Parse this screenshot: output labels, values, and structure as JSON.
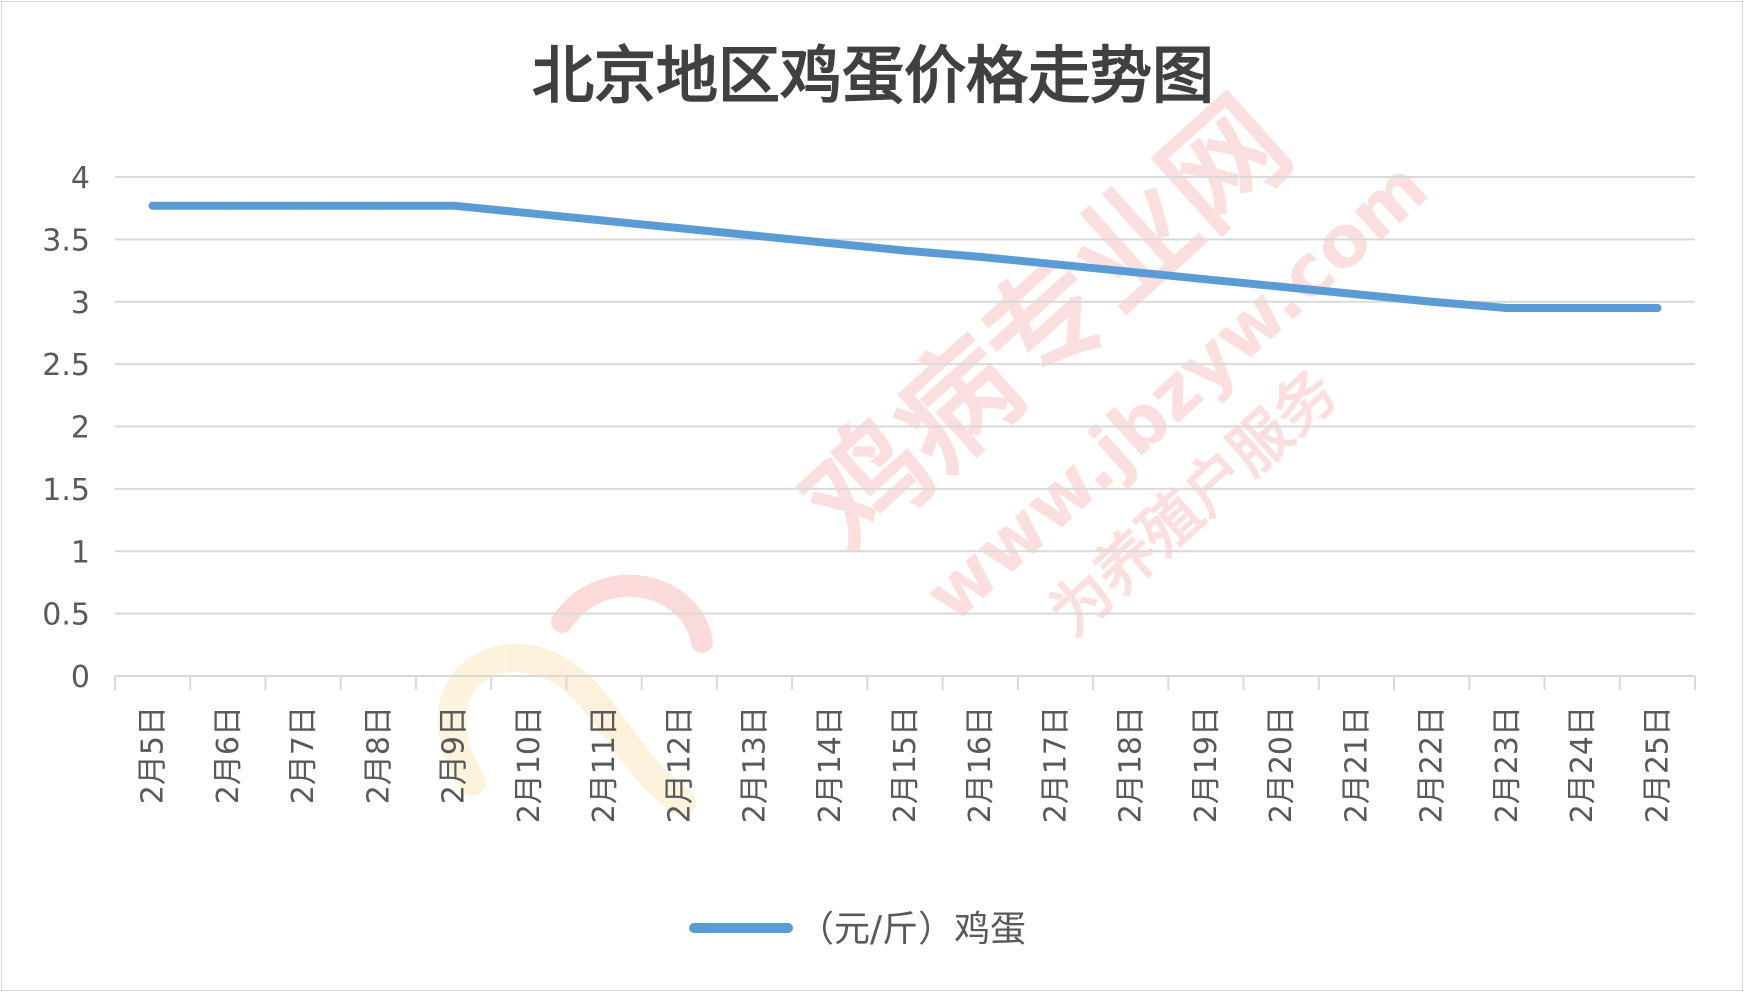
{
  "colors": {
    "series": "#5b9bd5",
    "grid": "#d9d9d9",
    "axis": "#d9d9d9",
    "text": "#595959",
    "title": "#404040",
    "watermark": "#e8403a"
  },
  "watermark": {
    "name": "鸡病专业网",
    "url": "www.jbzyw.com",
    "slogan": "为养殖户服务"
  },
  "chart_data": {
    "type": "line",
    "title": "北京地区鸡蛋价格走势图",
    "xlabel": "",
    "ylabel": "",
    "ylim": [
      0,
      4
    ],
    "yticks": [
      "0",
      "0.5",
      "1",
      "1.5",
      "2",
      "2.5",
      "3",
      "3.5",
      "4"
    ],
    "grid": true,
    "legend_position": "bottom",
    "categories": [
      "2月5日",
      "2月6日",
      "2月7日",
      "2月8日",
      "2月9日",
      "2月10日",
      "2月11日",
      "2月12日",
      "2月13日",
      "2月14日",
      "2月15日",
      "2月16日",
      "2月17日",
      "2月18日",
      "2月19日",
      "2月20日",
      "2月21日",
      "2月22日",
      "2月23日",
      "2月24日",
      "2月25日"
    ],
    "series": [
      {
        "name": "（元/斤）鸡蛋",
        "values": [
          3.77,
          3.77,
          3.77,
          3.77,
          3.77,
          3.71,
          3.65,
          3.59,
          3.53,
          3.47,
          3.41,
          3.36,
          3.3,
          3.24,
          3.18,
          3.12,
          3.06,
          3.0,
          2.95,
          2.95,
          2.95
        ]
      }
    ]
  }
}
